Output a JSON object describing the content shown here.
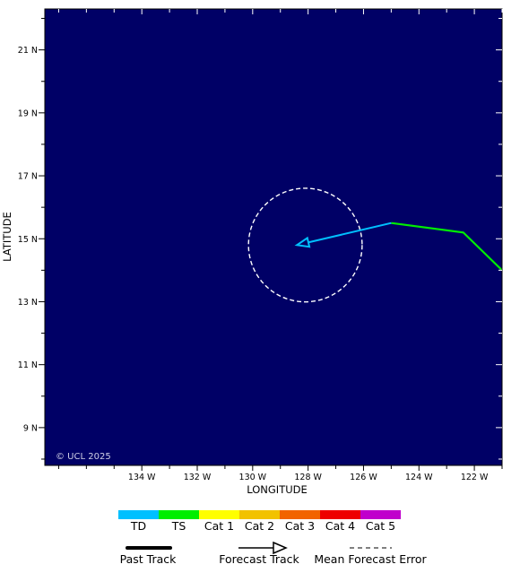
{
  "map": {
    "background_color": "#000066",
    "copyright": "© UCL 2025",
    "lon_range_deg_west": [
      137.5,
      121
    ],
    "lat_range_deg_north": [
      7.8,
      22.3
    ],
    "x_axis": {
      "title": "LONGITUDE",
      "ticks": [
        {
          "value": 134,
          "label": "134 W"
        },
        {
          "value": 132,
          "label": "132 W"
        },
        {
          "value": 130,
          "label": "130 W"
        },
        {
          "value": 128,
          "label": "128 W"
        },
        {
          "value": 126,
          "label": "126 W"
        },
        {
          "value": 124,
          "label": "124 W"
        },
        {
          "value": 122,
          "label": "122 W"
        }
      ]
    },
    "y_axis": {
      "title": "LATITUDE",
      "ticks": [
        {
          "value": 21,
          "label": "21 N"
        },
        {
          "value": 19,
          "label": "19 N"
        },
        {
          "value": 17,
          "label": "17 N"
        },
        {
          "value": 15,
          "label": "15 N"
        },
        {
          "value": 13,
          "label": "13 N"
        },
        {
          "value": 11,
          "label": "11 N"
        },
        {
          "value": 9,
          "label": "9 N"
        }
      ]
    },
    "track": {
      "past_segments": [
        {
          "intensity": "TS",
          "points": [
            [
              121.0,
              14.0
            ],
            [
              122.4,
              15.2
            ],
            [
              125.0,
              15.5
            ]
          ]
        }
      ],
      "forecast_segments": [
        {
          "intensity": "TD",
          "points": [
            [
              125.0,
              15.5
            ],
            [
              128.4,
              14.8
            ]
          ]
        }
      ],
      "error_circle": {
        "center": [
          128.1,
          14.8
        ],
        "radius_deg": 2.05
      }
    }
  },
  "legend": {
    "intensity_scale": [
      {
        "label": "TD",
        "color": "#00c0ff"
      },
      {
        "label": "TS",
        "color": "#00ee00"
      },
      {
        "label": "Cat 1",
        "color": "#ffff00"
      },
      {
        "label": "Cat 2",
        "color": "#f2c200"
      },
      {
        "label": "Cat 3",
        "color": "#f26300"
      },
      {
        "label": "Cat 4",
        "color": "#ee0000"
      },
      {
        "label": "Cat 5",
        "color": "#c000cc"
      }
    ],
    "line_keys": {
      "past": "Past Track",
      "forecast": "Forecast Track",
      "error": "Mean Forecast Error"
    }
  }
}
